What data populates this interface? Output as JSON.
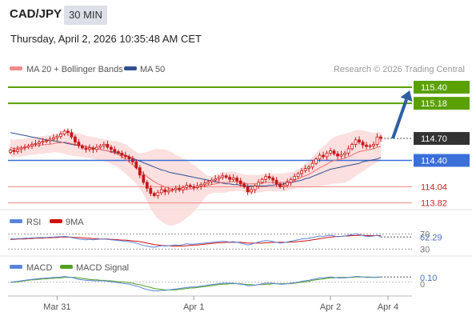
{
  "header": {
    "symbol": "CAD/JPY",
    "timeframe": "30 MIN",
    "datetime": "Thursday, April 2, 2026 10:35:48 AM CET"
  },
  "legend": {
    "ma20_bb": "MA 20 + Bollinger Bands",
    "ma50": "MA 50",
    "credit": "Research © 2026 Trading Central"
  },
  "colors": {
    "ma20": "#ee6f6f",
    "ma50": "#2f4f8f",
    "candle": "#c81818",
    "resistance": "#5aa000",
    "pivot": "#3a6fd8",
    "support": "#ee8888",
    "last_price": "#333333",
    "rsi": "#5b84d8",
    "rsi_ma": "#d01010",
    "macd": "#5b84d8",
    "macd_signal": "#50a020"
  },
  "chart_data": [
    {
      "type": "candlestick",
      "title": "",
      "ylim": [
        113.75,
        115.52
      ],
      "levels": [
        {
          "name": "resistance-2",
          "value": 115.4,
          "label": "115.40"
        },
        {
          "name": "resistance-1",
          "value": 115.18,
          "label": "115.18"
        },
        {
          "name": "last-price",
          "value": 114.7,
          "label": "114.70"
        },
        {
          "name": "pivot",
          "value": 114.4,
          "label": "114.40"
        },
        {
          "name": "support-1",
          "value": 114.04,
          "label": "114.04"
        },
        {
          "name": "support-2",
          "value": 113.82,
          "label": "113.82"
        }
      ],
      "x_ticks": [
        {
          "index": 13,
          "label": "Mar 31"
        },
        {
          "index": 51,
          "label": "Apr 1"
        },
        {
          "index": 89,
          "label": "Apr 2"
        },
        {
          "index": 105,
          "label": "Apr 4"
        }
      ],
      "close": [
        114.54,
        114.52,
        114.55,
        114.57,
        114.58,
        114.6,
        114.62,
        114.63,
        114.65,
        114.66,
        114.67,
        114.69,
        114.71,
        114.73,
        114.76,
        114.8,
        114.78,
        114.72,
        114.65,
        114.6,
        114.57,
        114.55,
        114.57,
        114.55,
        114.58,
        114.6,
        114.62,
        114.58,
        114.55,
        114.52,
        114.5,
        114.47,
        114.45,
        114.42,
        114.38,
        114.3,
        114.2,
        114.1,
        114.02,
        113.95,
        113.92,
        113.96,
        114.0,
        113.97,
        113.99,
        114.0,
        114.02,
        114.0,
        114.03,
        114.06,
        114.04,
        114.03,
        114.05,
        114.07,
        114.09,
        114.11,
        114.13,
        114.15,
        114.17,
        114.19,
        114.17,
        114.14,
        114.16,
        114.12,
        114.08,
        114.04,
        113.97,
        114.0,
        114.05,
        114.1,
        114.14,
        114.18,
        114.16,
        114.13,
        114.08,
        114.04,
        114.06,
        114.1,
        114.14,
        114.18,
        114.22,
        114.26,
        114.29,
        114.31,
        114.36,
        114.42,
        114.47,
        114.45,
        114.5,
        114.53,
        114.49,
        114.46,
        114.48,
        114.5,
        114.56,
        114.62,
        114.68,
        114.65,
        114.61,
        114.59,
        114.6,
        114.62,
        114.72,
        114.7
      ],
      "ma20": [
        114.58,
        114.56,
        114.57,
        114.57,
        114.58,
        114.59,
        114.6,
        114.6,
        114.61,
        114.61,
        114.62,
        114.62,
        114.63,
        114.64,
        114.64,
        114.65,
        114.64,
        114.63,
        114.62,
        114.61,
        114.6,
        114.59,
        114.58,
        114.57,
        114.56,
        114.55,
        114.54,
        114.53,
        114.51,
        114.5,
        114.48,
        114.45,
        114.42,
        114.38,
        114.34,
        114.3,
        114.26,
        114.22,
        114.18,
        114.14,
        114.11,
        114.08,
        114.06,
        114.04,
        114.02,
        114.01,
        114.0,
        114.0,
        114.0,
        114.01,
        114.01,
        114.02,
        114.03,
        114.04,
        114.05,
        114.06,
        114.07,
        114.08,
        114.09,
        114.1,
        114.1,
        114.11,
        114.11,
        114.11,
        114.1,
        114.09,
        114.08,
        114.08,
        114.08,
        114.08,
        114.09,
        114.1,
        114.1,
        114.1,
        114.1,
        114.1,
        114.1,
        114.11,
        114.12,
        114.13,
        114.15,
        114.17,
        114.19,
        114.21,
        114.24,
        114.27,
        114.3,
        114.32,
        114.35,
        114.38,
        114.4,
        114.41,
        114.42,
        114.43,
        114.45,
        114.47,
        114.5,
        114.52,
        114.53,
        114.54,
        114.55,
        114.56,
        114.58,
        114.59
      ],
      "ma50": [
        114.78,
        114.77,
        114.76,
        114.75,
        114.74,
        114.73,
        114.72,
        114.71,
        114.7,
        114.69,
        114.68,
        114.67,
        114.67,
        114.66,
        114.65,
        114.64,
        114.63,
        114.62,
        114.61,
        114.61,
        114.6,
        114.59,
        114.58,
        114.57,
        114.56,
        114.55,
        114.54,
        114.53,
        114.52,
        114.51,
        114.5,
        114.48,
        114.47,
        114.45,
        114.43,
        114.41,
        114.39,
        114.37,
        114.35,
        114.33,
        114.31,
        114.29,
        114.27,
        114.26,
        114.24,
        114.23,
        114.22,
        114.21,
        114.2,
        114.19,
        114.18,
        114.17,
        114.16,
        114.15,
        114.14,
        114.13,
        114.12,
        114.11,
        114.1,
        114.09,
        114.08,
        114.08,
        114.07,
        114.07,
        114.06,
        114.06,
        114.05,
        114.05,
        114.05,
        114.05,
        114.05,
        114.05,
        114.06,
        114.06,
        114.07,
        114.07,
        114.08,
        114.09,
        114.1,
        114.11,
        114.12,
        114.13,
        114.15,
        114.16,
        114.18,
        114.2,
        114.22,
        114.24,
        114.26,
        114.28,
        114.29,
        114.3,
        114.31,
        114.32,
        114.33,
        114.34,
        114.35,
        114.36,
        114.38,
        114.39,
        114.4,
        114.41,
        114.42,
        114.44
      ],
      "forecast_arrow": {
        "from_index": 105,
        "from": 114.7,
        "to": 115.4
      }
    },
    {
      "type": "line",
      "series": [
        {
          "name": "RSI",
          "values": [
            58,
            57,
            58,
            58,
            59,
            59,
            60,
            60,
            61,
            61,
            61,
            62,
            62,
            63,
            63,
            64,
            63,
            61,
            59,
            57,
            56,
            55,
            56,
            55,
            56,
            57,
            57,
            56,
            55,
            54,
            53,
            52,
            51,
            50,
            48,
            46,
            43,
            40,
            38,
            36,
            35,
            37,
            39,
            38,
            39,
            40,
            41,
            40,
            42,
            44,
            43,
            43,
            44,
            45,
            46,
            47,
            48,
            49,
            50,
            51,
            50,
            49,
            50,
            48,
            46,
            44,
            41,
            43,
            46,
            49,
            51,
            53,
            52,
            50,
            48,
            46,
            47,
            49,
            51,
            53,
            55,
            57,
            58,
            59,
            61,
            63,
            65,
            64,
            66,
            67,
            65,
            63,
            64,
            65,
            67,
            69,
            71,
            69,
            66,
            64,
            64,
            65,
            67,
            62.29
          ]
        },
        {
          "name": "9MA",
          "values": [
            56,
            56,
            57,
            57,
            57,
            58,
            58,
            59,
            59,
            59,
            60,
            60,
            61,
            61,
            62,
            62,
            62,
            62,
            61,
            61,
            60,
            59,
            59,
            58,
            58,
            57,
            57,
            57,
            56,
            56,
            55,
            54,
            54,
            53,
            52,
            51,
            50,
            48,
            46,
            44,
            42,
            41,
            40,
            39,
            39,
            38,
            38,
            38,
            38,
            39,
            40,
            41,
            41,
            42,
            43,
            44,
            45,
            46,
            47,
            47,
            48,
            48,
            48,
            48,
            48,
            47,
            46,
            46,
            46,
            46,
            46,
            47,
            47,
            48,
            48,
            48,
            48,
            48,
            49,
            49,
            50,
            51,
            52,
            53,
            55,
            56,
            58,
            59,
            61,
            62,
            63,
            64,
            64,
            65,
            65,
            66,
            66,
            67,
            67,
            66,
            66,
            66,
            66,
            66
          ]
        }
      ],
      "ylim": [
        20,
        80
      ],
      "ref_lines": [
        70,
        30
      ],
      "tick_labels": [
        "70",
        "62.29",
        "30"
      ]
    },
    {
      "type": "line",
      "series": [
        {
          "name": "MACD",
          "values": [
            0.0,
            0.01,
            0.02,
            0.03,
            0.04,
            0.05,
            0.06,
            0.07,
            0.08,
            0.08,
            0.09,
            0.09,
            0.1,
            0.1,
            0.11,
            0.12,
            0.11,
            0.1,
            0.08,
            0.06,
            0.05,
            0.04,
            0.04,
            0.03,
            0.03,
            0.03,
            0.03,
            0.02,
            0.01,
            0.0,
            -0.01,
            -0.02,
            -0.03,
            -0.04,
            -0.06,
            -0.08,
            -0.1,
            -0.13,
            -0.15,
            -0.17,
            -0.18,
            -0.18,
            -0.17,
            -0.17,
            -0.16,
            -0.15,
            -0.14,
            -0.13,
            -0.12,
            -0.11,
            -0.1,
            -0.1,
            -0.09,
            -0.08,
            -0.07,
            -0.06,
            -0.05,
            -0.04,
            -0.03,
            -0.02,
            -0.02,
            -0.02,
            -0.02,
            -0.03,
            -0.04,
            -0.05,
            -0.07,
            -0.07,
            -0.06,
            -0.05,
            -0.03,
            -0.02,
            -0.02,
            -0.02,
            -0.03,
            -0.04,
            -0.04,
            -0.03,
            -0.02,
            -0.01,
            0.0,
            0.02,
            0.03,
            0.04,
            0.06,
            0.07,
            0.09,
            0.09,
            0.1,
            0.11,
            0.1,
            0.09,
            0.09,
            0.09,
            0.1,
            0.11,
            0.12,
            0.12,
            0.11,
            0.1,
            0.1,
            0.1,
            0.11,
            0.11
          ]
        },
        {
          "name": "MACD Signal",
          "values": [
            0.0,
            0.0,
            0.01,
            0.02,
            0.03,
            0.04,
            0.05,
            0.05,
            0.06,
            0.07,
            0.07,
            0.08,
            0.08,
            0.09,
            0.09,
            0.1,
            0.1,
            0.1,
            0.1,
            0.09,
            0.08,
            0.07,
            0.06,
            0.05,
            0.05,
            0.04,
            0.04,
            0.03,
            0.03,
            0.02,
            0.01,
            0.01,
            0.0,
            -0.01,
            -0.02,
            -0.04,
            -0.05,
            -0.07,
            -0.09,
            -0.11,
            -0.13,
            -0.14,
            -0.15,
            -0.16,
            -0.16,
            -0.16,
            -0.16,
            -0.15,
            -0.14,
            -0.13,
            -0.12,
            -0.12,
            -0.11,
            -0.1,
            -0.09,
            -0.08,
            -0.07,
            -0.06,
            -0.05,
            -0.04,
            -0.04,
            -0.03,
            -0.03,
            -0.03,
            -0.03,
            -0.04,
            -0.05,
            -0.05,
            -0.06,
            -0.05,
            -0.05,
            -0.04,
            -0.04,
            -0.03,
            -0.03,
            -0.03,
            -0.03,
            -0.03,
            -0.03,
            -0.02,
            -0.01,
            0.0,
            0.01,
            0.02,
            0.04,
            0.05,
            0.06,
            0.07,
            0.08,
            0.09,
            0.09,
            0.1,
            0.1,
            0.1,
            0.1,
            0.1,
            0.11,
            0.11,
            0.11,
            0.11,
            0.11,
            0.1,
            0.1,
            0.11
          ]
        }
      ],
      "ylim": [
        -0.22,
        0.18
      ],
      "ref_lines": [
        0
      ],
      "tick_labels": [
        "0.10",
        "0"
      ]
    }
  ],
  "rsi_legend": {
    "rsi": "RSI",
    "ma": "9MA"
  },
  "macd_legend": {
    "macd": "MACD",
    "signal": "MACD Signal"
  }
}
